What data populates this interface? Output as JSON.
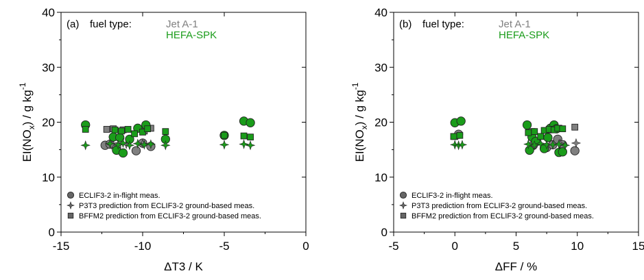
{
  "colors": {
    "jet": "#808080",
    "hefa": "#1a9c1a",
    "stroke": "#222222"
  },
  "chart_data": [
    {
      "type": "scatter",
      "panel_label": "(a)",
      "fuel_type_label": "fuel type:",
      "fuel_entries": [
        {
          "name": "Jet A-1",
          "color": "#808080"
        },
        {
          "name": "HEFA-SPK",
          "color": "#1a9c1a"
        }
      ],
      "xlabel": "ΔT3 / K",
      "ylabel": "EI(NOx) / g kg-1",
      "xlim": [
        -15,
        0
      ],
      "ylim": [
        0,
        40
      ],
      "xticks": [
        "-15",
        "-10",
        "-5",
        "0"
      ],
      "yticks": [
        "0",
        "10",
        "20",
        "30",
        "40"
      ],
      "grid": false,
      "legend_position": "bottom-left",
      "legend": [
        {
          "label": "ECLIF3-2 in-flight meas.",
          "marker": "circle"
        },
        {
          "label": "P3T3 prediction from ECLIF3-2 ground-based meas.",
          "marker": "star"
        },
        {
          "label": "BFFM2 prediction from ECLIF3-2 ground-based meas.",
          "marker": "square"
        }
      ],
      "series": [
        {
          "name": "Jet A-1",
          "marker": "circle",
          "color": "#808080",
          "x": [
            -12.3,
            -12.0,
            -11.6,
            -10.4,
            -10.0,
            -9.5
          ],
          "y": [
            15.8,
            16.0,
            15.5,
            14.8,
            16.2,
            15.6
          ]
        },
        {
          "name": "Jet A-1",
          "marker": "square",
          "color": "#808080",
          "x": [
            -12.2,
            -11.8,
            -11.2,
            -10.3,
            -9.9,
            -9.5
          ],
          "y": [
            18.7,
            18.8,
            18.6,
            18.8,
            18.4,
            18.9
          ]
        },
        {
          "name": "Jet A-1",
          "marker": "star",
          "color": "#808080",
          "x": [
            -11.9,
            -11.0,
            -10.0
          ],
          "y": [
            15.9,
            16.0,
            16.1
          ]
        },
        {
          "name": "HEFA-SPK",
          "marker": "circle",
          "color": "#1a9c1a",
          "x": [
            -13.5,
            -11.8,
            -11.6,
            -11.4,
            -11.2,
            -10.8,
            -10.3,
            -9.8,
            -8.6,
            -5.0,
            -3.8,
            -3.4
          ],
          "y": [
            19.5,
            17.3,
            14.9,
            17.2,
            14.4,
            16.9,
            18.9,
            19.5,
            16.9,
            17.6,
            20.2,
            19.9
          ]
        },
        {
          "name": "HEFA-SPK",
          "marker": "square",
          "color": "#1a9c1a",
          "x": [
            -13.5,
            -11.7,
            -11.3,
            -10.9,
            -10.5,
            -10.0,
            -9.7,
            -8.6,
            -5.0,
            -3.8,
            -3.4
          ],
          "y": [
            18.7,
            18.6,
            18.4,
            18.7,
            17.9,
            18.2,
            18.8,
            18.3,
            17.6,
            17.5,
            17.3
          ]
        },
        {
          "name": "HEFA-SPK",
          "marker": "star",
          "color": "#1a9c1a",
          "x": [
            -13.5,
            -12.0,
            -11.5,
            -11.2,
            -10.8,
            -10.3,
            -9.9,
            -9.5,
            -8.6,
            -5.0,
            -3.8,
            -3.4
          ],
          "y": [
            15.8,
            16.1,
            15.9,
            16.2,
            15.8,
            16.1,
            15.9,
            16.0,
            15.8,
            15.9,
            16.0,
            15.8
          ]
        }
      ]
    },
    {
      "type": "scatter",
      "panel_label": "(b)",
      "fuel_type_label": "fuel type:",
      "fuel_entries": [
        {
          "name": "Jet A-1",
          "color": "#808080"
        },
        {
          "name": "HEFA-SPK",
          "color": "#1a9c1a"
        }
      ],
      "xlabel": "ΔFF / %",
      "ylabel": "EI(NOx) / g kg-1",
      "xlim": [
        -5,
        15
      ],
      "ylim": [
        0,
        40
      ],
      "xticks": [
        "-5",
        "0",
        "5",
        "10",
        "15"
      ],
      "yticks": [
        "0",
        "10",
        "20",
        "30",
        "40"
      ],
      "grid": false,
      "legend_position": "bottom-left",
      "legend": [
        {
          "label": "ECLIF3-2 in-flight meas.",
          "marker": "circle"
        },
        {
          "label": "P3T3 prediction from ECLIF3-2 ground-based meas.",
          "marker": "star"
        },
        {
          "label": "BFFM2 prediction from ECLIF3-2 ground-based meas.",
          "marker": "square"
        }
      ],
      "series": [
        {
          "name": "Jet A-1",
          "marker": "circle",
          "color": "#808080",
          "x": [
            0.3,
            6.4,
            7.5,
            8.0,
            8.4,
            8.8,
            9.8
          ],
          "y": [
            17.8,
            15.8,
            15.4,
            15.9,
            16.9,
            15.9,
            14.8
          ]
        },
        {
          "name": "Jet A-1",
          "marker": "square",
          "color": "#808080",
          "x": [
            0.0,
            6.3,
            7.7,
            8.5,
            9.8
          ],
          "y": [
            17.4,
            18.3,
            18.6,
            18.9,
            19.1
          ]
        },
        {
          "name": "Jet A-1",
          "marker": "star",
          "color": "#808080",
          "x": [
            6.6,
            8.6,
            9.9
          ],
          "y": [
            15.9,
            16.1,
            16.2
          ]
        },
        {
          "name": "HEFA-SPK",
          "marker": "circle",
          "color": "#1a9c1a",
          "x": [
            0.0,
            0.5,
            5.9,
            6.1,
            6.3,
            6.6,
            7.3,
            7.6,
            7.8,
            8.1,
            8.3,
            8.5,
            8.8
          ],
          "y": [
            19.9,
            20.2,
            19.5,
            14.9,
            17.3,
            16.5,
            15.2,
            17.2,
            18.9,
            19.5,
            18.8,
            14.5,
            14.6
          ]
        },
        {
          "name": "HEFA-SPK",
          "marker": "square",
          "color": "#1a9c1a",
          "x": [
            -0.1,
            0.4,
            6.0,
            6.5,
            7.0,
            7.3,
            7.7,
            8.1,
            8.4,
            8.8
          ],
          "y": [
            17.4,
            17.6,
            18.1,
            18.3,
            17.4,
            18.5,
            18.7,
            18.6,
            18.9,
            18.8
          ]
        },
        {
          "name": "HEFA-SPK",
          "marker": "star",
          "color": "#1a9c1a",
          "x": [
            0.0,
            0.3,
            0.6,
            6.0,
            6.5,
            7.0,
            7.5,
            8.0,
            8.5,
            9.0
          ],
          "y": [
            15.9,
            15.8,
            15.9,
            16.0,
            15.8,
            16.1,
            15.9,
            15.9,
            16.0,
            15.8
          ]
        }
      ]
    }
  ]
}
